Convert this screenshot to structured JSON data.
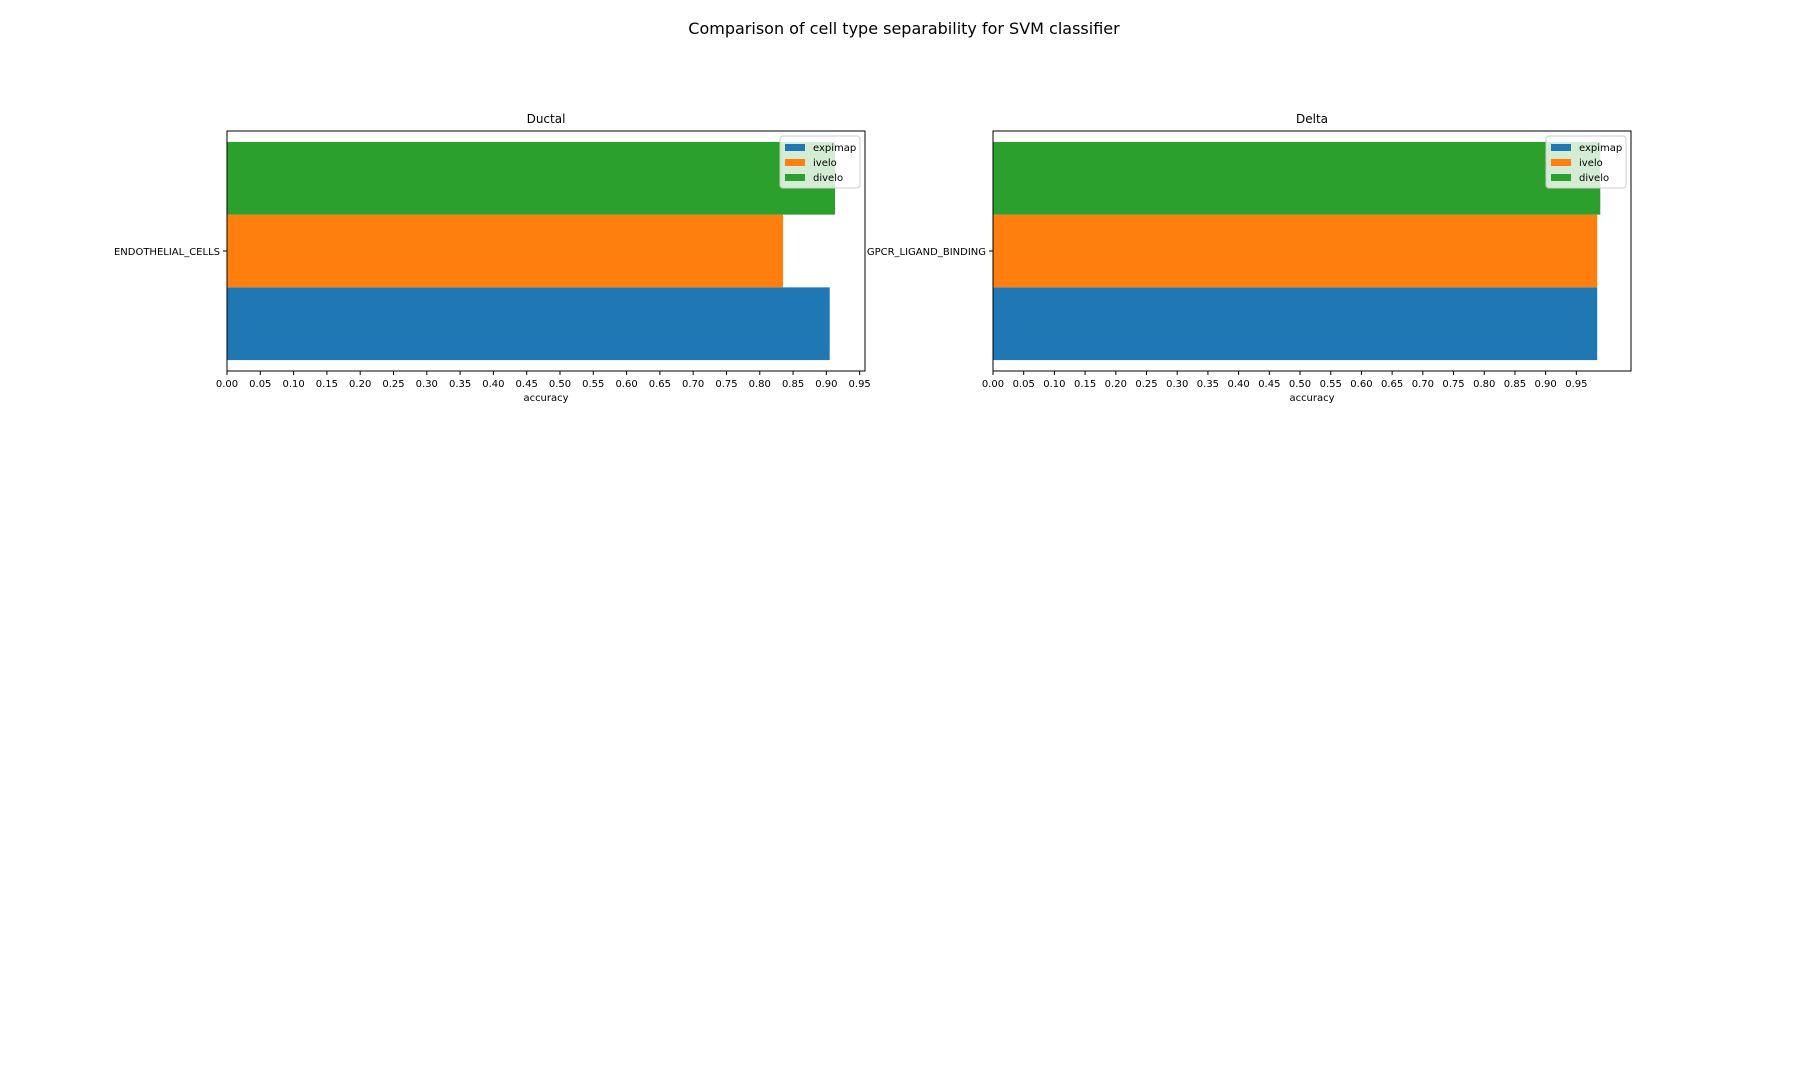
{
  "figure": {
    "suptitle": "Comparison of cell type separability for SVM classifier"
  },
  "legend": {
    "placement": "upper-right",
    "entries": [
      {
        "name": "expimap",
        "color": "#1f77b4"
      },
      {
        "name": "ivelo",
        "color": "#ff7f0e"
      },
      {
        "name": "divelo",
        "color": "#2ca02c"
      }
    ]
  },
  "chart_data": [
    {
      "type": "bar",
      "orientation": "horizontal",
      "title": "Ductal",
      "xlabel": "accuracy",
      "ylabel": "",
      "categories": [
        "ENDOTHELIAL_CELLS"
      ],
      "xlim": [
        0,
        0.958
      ],
      "xticks": [
        "0.00",
        "0.05",
        "0.10",
        "0.15",
        "0.20",
        "0.25",
        "0.30",
        "0.35",
        "0.40",
        "0.45",
        "0.50",
        "0.55",
        "0.60",
        "0.65",
        "0.70",
        "0.75",
        "0.80",
        "0.85",
        "0.90",
        "0.95"
      ],
      "grid": false,
      "series": [
        {
          "name": "expimap",
          "color": "#1f77b4",
          "values": [
            0.905
          ]
        },
        {
          "name": "ivelo",
          "color": "#ff7f0e",
          "values": [
            0.835
          ]
        },
        {
          "name": "divelo",
          "color": "#2ca02c",
          "values": [
            0.913
          ]
        }
      ]
    },
    {
      "type": "bar",
      "orientation": "horizontal",
      "title": "Delta",
      "xlabel": "accuracy",
      "ylabel": "",
      "categories": [
        "GPCR_LIGAND_BINDING"
      ],
      "xlim": [
        0,
        1.039
      ],
      "xticks": [
        "0.00",
        "0.05",
        "0.10",
        "0.15",
        "0.20",
        "0.25",
        "0.30",
        "0.35",
        "0.40",
        "0.45",
        "0.50",
        "0.55",
        "0.60",
        "0.65",
        "0.70",
        "0.75",
        "0.80",
        "0.85",
        "0.90",
        "0.95"
      ],
      "grid": false,
      "series": [
        {
          "name": "expimap",
          "color": "#1f77b4",
          "values": [
            0.984
          ]
        },
        {
          "name": "ivelo",
          "color": "#ff7f0e",
          "values": [
            0.984
          ]
        },
        {
          "name": "divelo",
          "color": "#2ca02c",
          "values": [
            0.989
          ]
        }
      ]
    }
  ]
}
